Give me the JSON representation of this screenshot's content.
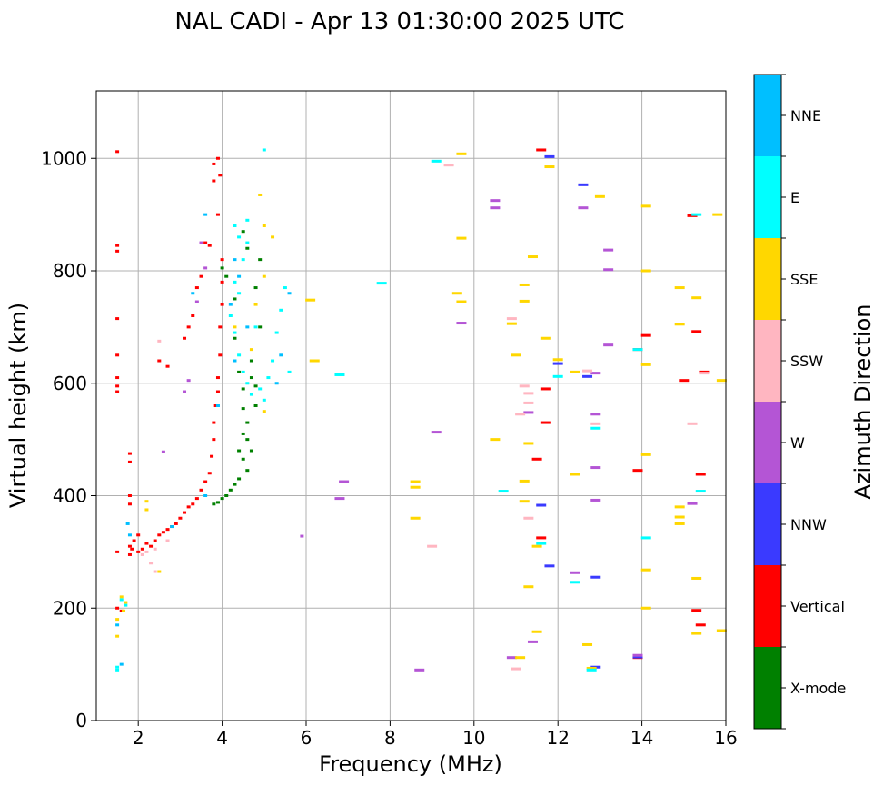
{
  "chart_data": {
    "type": "scatter",
    "title": "NAL CADI - Apr 13 01:30:00 2025 UTC",
    "xlabel": "Frequency (MHz)",
    "ylabel": "Virtual height (km)",
    "xlim": [
      1,
      16
    ],
    "ylim": [
      0,
      1120
    ],
    "xticks": [
      2,
      4,
      6,
      8,
      10,
      12,
      14,
      16
    ],
    "yticks": [
      0,
      200,
      400,
      600,
      800,
      1000
    ],
    "grid": true,
    "colorbar": {
      "label": "Azimuth Direction",
      "entries": [
        {
          "name": "X-mode",
          "color": "#008000"
        },
        {
          "name": "Vertical",
          "color": "#ff0000"
        },
        {
          "name": "NNW",
          "color": "#3a3aff"
        },
        {
          "name": "W",
          "color": "#b455d5"
        },
        {
          "name": "SSW",
          "color": "#ffb6c1"
        },
        {
          "name": "SSE",
          "color": "#ffd700"
        },
        {
          "name": "E",
          "color": "#00ffff"
        },
        {
          "name": "NNE",
          "color": "#00bfff"
        }
      ]
    },
    "series": [
      {
        "name": "Vertical",
        "color": "#ff0000",
        "points": [
          [
            1.5,
            1012
          ],
          [
            1.5,
            845
          ],
          [
            1.5,
            835
          ],
          [
            1.5,
            715
          ],
          [
            1.5,
            650
          ],
          [
            1.5,
            610
          ],
          [
            1.5,
            595
          ],
          [
            1.5,
            585
          ],
          [
            1.5,
            300
          ],
          [
            1.5,
            200
          ],
          [
            1.6,
            195
          ],
          [
            1.8,
            475
          ],
          [
            1.8,
            460
          ],
          [
            1.8,
            400
          ],
          [
            1.8,
            385
          ],
          [
            1.8,
            310
          ],
          [
            1.8,
            295
          ],
          [
            1.85,
            305
          ],
          [
            1.9,
            320
          ],
          [
            2.0,
            330
          ],
          [
            2.0,
            300
          ],
          [
            2.1,
            305
          ],
          [
            2.2,
            315
          ],
          [
            2.3,
            310
          ],
          [
            2.4,
            320
          ],
          [
            2.5,
            330
          ],
          [
            2.6,
            335
          ],
          [
            2.7,
            340
          ],
          [
            2.8,
            345
          ],
          [
            2.9,
            350
          ],
          [
            3.0,
            360
          ],
          [
            3.1,
            370
          ],
          [
            3.2,
            380
          ],
          [
            3.3,
            385
          ],
          [
            3.4,
            395
          ],
          [
            3.5,
            410
          ],
          [
            3.6,
            425
          ],
          [
            3.7,
            440
          ],
          [
            3.75,
            470
          ],
          [
            3.8,
            500
          ],
          [
            3.8,
            530
          ],
          [
            3.85,
            560
          ],
          [
            3.9,
            585
          ],
          [
            3.9,
            610
          ],
          [
            3.95,
            650
          ],
          [
            3.95,
            700
          ],
          [
            4.0,
            740
          ],
          [
            4.0,
            780
          ],
          [
            4.0,
            820
          ],
          [
            3.8,
            990
          ],
          [
            3.8,
            960
          ],
          [
            3.9,
            1000
          ],
          [
            3.95,
            970
          ],
          [
            3.9,
            900
          ],
          [
            3.6,
            850
          ],
          [
            3.7,
            845
          ],
          [
            3.5,
            790
          ],
          [
            3.4,
            770
          ],
          [
            3.3,
            720
          ],
          [
            3.2,
            700
          ],
          [
            3.1,
            680
          ],
          [
            2.5,
            640
          ],
          [
            2.7,
            630
          ],
          [
            11.6,
            1015
          ],
          [
            11.5,
            465
          ],
          [
            11.6,
            325
          ],
          [
            11.7,
            590
          ],
          [
            11.7,
            530
          ],
          [
            13.9,
            660
          ],
          [
            14.1,
            685
          ],
          [
            13.9,
            445
          ],
          [
            13.9,
            112
          ],
          [
            15.2,
            898
          ],
          [
            15.0,
            605
          ],
          [
            15.3,
            692
          ],
          [
            15.5,
            620
          ],
          [
            15.4,
            438
          ],
          [
            15.3,
            196
          ],
          [
            15.4,
            170
          ]
        ]
      },
      {
        "name": "X-mode",
        "color": "#008000",
        "points": [
          [
            4.0,
            805
          ],
          [
            4.1,
            790
          ],
          [
            4.3,
            750
          ],
          [
            4.3,
            680
          ],
          [
            4.4,
            620
          ],
          [
            4.5,
            590
          ],
          [
            4.5,
            555
          ],
          [
            4.6,
            530
          ],
          [
            4.6,
            500
          ],
          [
            4.7,
            480
          ],
          [
            4.5,
            465
          ],
          [
            4.6,
            445
          ],
          [
            4.4,
            430
          ],
          [
            4.3,
            420
          ],
          [
            4.2,
            410
          ],
          [
            4.1,
            400
          ],
          [
            4.0,
            395
          ],
          [
            3.9,
            388
          ],
          [
            3.8,
            385
          ],
          [
            4.8,
            595
          ],
          [
            4.7,
            640
          ],
          [
            4.9,
            700
          ],
          [
            4.8,
            770
          ],
          [
            4.9,
            820
          ],
          [
            4.6,
            840
          ],
          [
            4.5,
            870
          ],
          [
            4.8,
            560
          ],
          [
            4.7,
            610
          ],
          [
            4.5,
            510
          ],
          [
            4.4,
            480
          ]
        ]
      },
      {
        "name": "NNW",
        "color": "#3a3aff",
        "points": [
          [
            11.8,
            1003
          ],
          [
            12.6,
            953
          ],
          [
            11.8,
            275
          ],
          [
            12.0,
            635
          ],
          [
            12.7,
            612
          ],
          [
            12.9,
            255
          ],
          [
            11.6,
            383
          ],
          [
            12.9,
            95
          ],
          [
            13.9,
            113
          ]
        ]
      },
      {
        "name": "W",
        "color": "#b455d5",
        "points": [
          [
            2.6,
            478
          ],
          [
            3.1,
            585
          ],
          [
            3.2,
            605
          ],
          [
            3.4,
            745
          ],
          [
            3.5,
            850
          ],
          [
            6.9,
            425
          ],
          [
            6.8,
            395
          ],
          [
            5.9,
            328
          ],
          [
            8.7,
            90
          ],
          [
            9.1,
            513
          ],
          [
            9.7,
            707
          ],
          [
            10.5,
            925
          ],
          [
            10.5,
            912
          ],
          [
            10.9,
            112
          ],
          [
            11.3,
            548
          ],
          [
            11.4,
            140
          ],
          [
            12.4,
            263
          ],
          [
            12.6,
            912
          ],
          [
            12.9,
            618
          ],
          [
            12.9,
            545
          ],
          [
            12.9,
            450
          ],
          [
            12.9,
            392
          ],
          [
            13.2,
            837
          ],
          [
            13.2,
            802
          ],
          [
            13.2,
            668
          ],
          [
            13.9,
            116
          ],
          [
            15.2,
            386
          ],
          [
            3.6,
            805
          ]
        ]
      },
      {
        "name": "SSW",
        "color": "#ffb6c1",
        "points": [
          [
            2.5,
            675
          ],
          [
            2.4,
            265
          ],
          [
            2.3,
            280
          ],
          [
            2.1,
            295
          ],
          [
            2.2,
            300
          ],
          [
            2.4,
            305
          ],
          [
            2.7,
            320
          ],
          [
            9.0,
            310
          ],
          [
            9.4,
            988
          ],
          [
            10.9,
            715
          ],
          [
            11.1,
            545
          ],
          [
            11.2,
            595
          ],
          [
            11.3,
            582
          ],
          [
            11.3,
            565
          ],
          [
            11.3,
            360
          ],
          [
            11.0,
            92
          ],
          [
            12.7,
            622
          ],
          [
            12.9,
            528
          ],
          [
            15.2,
            528
          ],
          [
            15.5,
            618
          ]
        ]
      },
      {
        "name": "SSE",
        "color": "#ffd700",
        "points": [
          [
            1.5,
            180
          ],
          [
            1.5,
            150
          ],
          [
            1.6,
            220
          ],
          [
            1.7,
            210
          ],
          [
            1.65,
            195
          ],
          [
            2.2,
            390
          ],
          [
            2.2,
            375
          ],
          [
            2.5,
            265
          ],
          [
            4.9,
            935
          ],
          [
            5.0,
            880
          ],
          [
            5.2,
            860
          ],
          [
            5.0,
            790
          ],
          [
            4.8,
            740
          ],
          [
            4.7,
            660
          ],
          [
            5.0,
            550
          ],
          [
            4.3,
            700
          ],
          [
            6.1,
            748
          ],
          [
            6.2,
            640
          ],
          [
            8.6,
            425
          ],
          [
            8.6,
            415
          ],
          [
            8.6,
            360
          ],
          [
            9.7,
            1008
          ],
          [
            9.7,
            858
          ],
          [
            9.6,
            760
          ],
          [
            9.7,
            745
          ],
          [
            10.5,
            500
          ],
          [
            10.9,
            706
          ],
          [
            11.0,
            650
          ],
          [
            11.1,
            112
          ],
          [
            11.2,
            775
          ],
          [
            11.2,
            746
          ],
          [
            11.3,
            493
          ],
          [
            11.2,
            426
          ],
          [
            11.2,
            390
          ],
          [
            11.4,
            825
          ],
          [
            11.5,
            158
          ],
          [
            11.3,
            238
          ],
          [
            11.7,
            680
          ],
          [
            11.8,
            985
          ],
          [
            12.0,
            642
          ],
          [
            12.4,
            620
          ],
          [
            12.4,
            438
          ],
          [
            12.7,
            135
          ],
          [
            13.0,
            932
          ],
          [
            14.1,
            915
          ],
          [
            14.1,
            800
          ],
          [
            14.1,
            633
          ],
          [
            14.1,
            473
          ],
          [
            14.1,
            268
          ],
          [
            14.1,
            200
          ],
          [
            14.9,
            770
          ],
          [
            14.9,
            705
          ],
          [
            15.3,
            752
          ],
          [
            14.9,
            380
          ],
          [
            14.9,
            362
          ],
          [
            14.9,
            350
          ],
          [
            15.3,
            253
          ],
          [
            15.3,
            155
          ],
          [
            15.8,
            900
          ],
          [
            15.9,
            605
          ],
          [
            15.9,
            160
          ],
          [
            11.5,
            310
          ],
          [
            12.8,
            93
          ]
        ]
      },
      {
        "name": "E",
        "color": "#00ffff",
        "points": [
          [
            1.5,
            95
          ],
          [
            1.5,
            90
          ],
          [
            1.6,
            215
          ],
          [
            1.7,
            205
          ],
          [
            4.3,
            880
          ],
          [
            4.4,
            860
          ],
          [
            4.6,
            850
          ],
          [
            4.5,
            820
          ],
          [
            4.3,
            780
          ],
          [
            4.4,
            760
          ],
          [
            4.2,
            720
          ],
          [
            4.3,
            690
          ],
          [
            4.4,
            650
          ],
          [
            4.5,
            620
          ],
          [
            4.6,
            600
          ],
          [
            4.7,
            580
          ],
          [
            4.9,
            590
          ],
          [
            5.0,
            570
          ],
          [
            5.1,
            610
          ],
          [
            5.2,
            640
          ],
          [
            5.3,
            690
          ],
          [
            5.4,
            730
          ],
          [
            5.5,
            770
          ],
          [
            5.6,
            620
          ],
          [
            5.0,
            1015
          ],
          [
            4.6,
            890
          ],
          [
            4.8,
            700
          ],
          [
            6.8,
            615
          ],
          [
            7.8,
            778
          ],
          [
            9.1,
            995
          ],
          [
            10.7,
            408
          ],
          [
            11.6,
            315
          ],
          [
            12.0,
            612
          ],
          [
            12.4,
            246
          ],
          [
            12.9,
            520
          ],
          [
            12.8,
            90
          ],
          [
            13.9,
            660
          ],
          [
            14.1,
            325
          ],
          [
            15.3,
            900
          ],
          [
            15.4,
            408
          ]
        ]
      },
      {
        "name": "NNE",
        "color": "#00bfff",
        "points": [
          [
            1.5,
            170
          ],
          [
            1.6,
            100
          ],
          [
            3.6,
            900
          ],
          [
            3.3,
            760
          ],
          [
            4.3,
            820
          ],
          [
            4.4,
            790
          ],
          [
            4.2,
            740
          ],
          [
            4.3,
            640
          ],
          [
            4.6,
            700
          ],
          [
            5.4,
            650
          ],
          [
            5.3,
            600
          ],
          [
            5.6,
            760
          ],
          [
            2.8,
            345
          ],
          [
            3.6,
            400
          ],
          [
            3.9,
            560
          ],
          [
            1.75,
            350
          ],
          [
            1.8,
            330
          ]
        ]
      }
    ]
  }
}
